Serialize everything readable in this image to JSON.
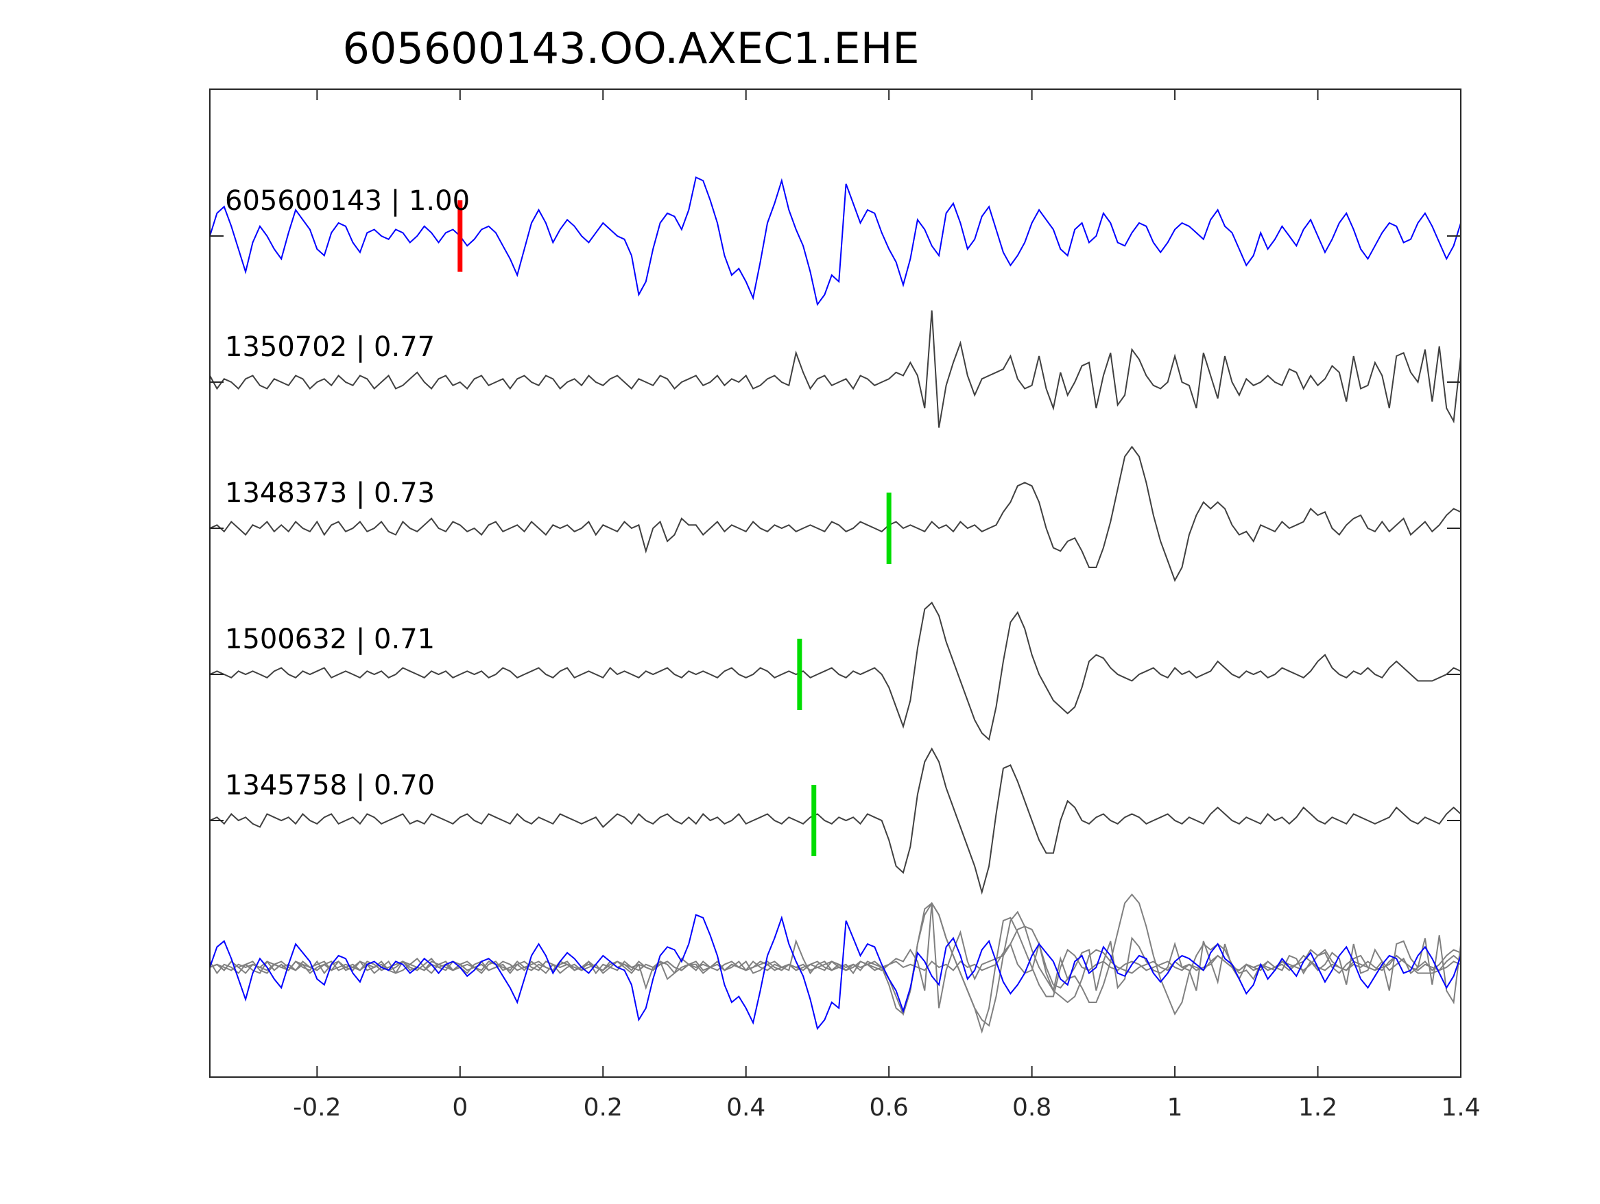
{
  "chart_data": {
    "type": "line",
    "title": "605600143.OO.AXEC1.EHE",
    "xlabel": "",
    "ylabel": "",
    "xlim": [
      -0.35,
      1.4
    ],
    "xticks": [
      -0.2,
      0,
      0.2,
      0.4,
      0.6,
      0.8,
      1,
      1.2,
      1.4
    ],
    "xtick_labels": [
      "-0.2",
      "0",
      "0.2",
      "0.4",
      "0.6",
      "0.8",
      "1",
      "1.2",
      "1.4"
    ],
    "grid": false,
    "legend": "none",
    "colors": {
      "template": "#0000ff",
      "match": "#404040",
      "overlay_match": "#808080",
      "template_pick": "#ff0000",
      "match_pick": "#00dd00",
      "axes": "#262626"
    },
    "sample_interval": 0.01,
    "series": [
      {
        "name": "605600143",
        "label": "605600143 | 1.00",
        "cc": 1.0,
        "role": "template",
        "pick_time": 0.0,
        "values": [
          0.0,
          0.35,
          0.45,
          0.15,
          -0.2,
          -0.55,
          -0.1,
          0.15,
          0.0,
          -0.2,
          -0.35,
          0.05,
          0.4,
          0.25,
          0.1,
          -0.2,
          -0.3,
          0.05,
          0.2,
          0.15,
          -0.1,
          -0.25,
          0.05,
          0.1,
          0.0,
          -0.05,
          0.1,
          0.05,
          -0.1,
          0.0,
          0.15,
          0.05,
          -0.1,
          0.05,
          0.1,
          0.0,
          -0.15,
          -0.05,
          0.1,
          0.15,
          0.05,
          -0.15,
          -0.35,
          -0.6,
          -0.2,
          0.2,
          0.4,
          0.2,
          -0.1,
          0.1,
          0.25,
          0.15,
          0.0,
          -0.1,
          0.05,
          0.2,
          0.1,
          0.0,
          -0.05,
          -0.3,
          -0.9,
          -0.7,
          -0.2,
          0.2,
          0.35,
          0.3,
          0.1,
          0.4,
          0.9,
          0.85,
          0.55,
          0.2,
          -0.3,
          -0.6,
          -0.5,
          -0.7,
          -0.95,
          -0.4,
          0.2,
          0.5,
          0.85,
          0.4,
          0.1,
          -0.15,
          -0.55,
          -1.05,
          -0.9,
          -0.6,
          -0.7,
          0.8,
          0.5,
          0.2,
          0.4,
          0.35,
          0.05,
          -0.2,
          -0.4,
          -0.75,
          -0.35,
          0.25,
          0.1,
          -0.15,
          -0.3,
          0.35,
          0.5,
          0.2,
          -0.2,
          -0.05,
          0.3,
          0.45,
          0.1,
          -0.25,
          -0.45,
          -0.3,
          -0.1,
          0.2,
          0.4,
          0.25,
          0.1,
          -0.2,
          -0.3,
          0.1,
          0.2,
          -0.1,
          0.0,
          0.35,
          0.2,
          -0.1,
          -0.15,
          0.05,
          0.2,
          0.15,
          -0.1,
          -0.25,
          -0.1,
          0.1,
          0.2,
          0.15,
          0.05,
          -0.05,
          0.25,
          0.4,
          0.15,
          0.05,
          -0.2,
          -0.45,
          -0.3,
          0.05,
          -0.2,
          -0.05,
          0.15,
          0.0,
          -0.15,
          0.1,
          0.25,
          0.0,
          -0.25,
          -0.05,
          0.2,
          0.35,
          0.1,
          -0.2,
          -0.35,
          -0.15,
          0.05,
          0.2,
          0.15,
          -0.1,
          -0.05,
          0.2,
          0.35,
          0.15,
          -0.1,
          -0.35,
          -0.15,
          0.2,
          0.4,
          0.2,
          -0.05,
          -0.25,
          -0.15,
          0.1,
          0.25,
          0.1,
          -0.05,
          0.15,
          0.3,
          0.1,
          -0.15,
          -0.05,
          0.15,
          0.3,
          0.15,
          -0.05,
          0.0,
          0.25,
          0.4,
          0.2,
          -0.05,
          -0.3,
          -0.35,
          -0.1,
          0.15,
          0.3,
          0.1,
          -0.05,
          -0.2,
          -0.05
        ]
      },
      {
        "name": "1350702",
        "label": "1350702 | 0.77",
        "cc": 0.77,
        "role": "match",
        "values": [
          0.1,
          -0.1,
          0.05,
          0.0,
          -0.1,
          0.05,
          0.1,
          -0.05,
          -0.1,
          0.05,
          0.0,
          -0.05,
          0.1,
          0.05,
          -0.1,
          0.0,
          0.05,
          -0.05,
          0.1,
          0.0,
          -0.05,
          0.1,
          0.05,
          -0.1,
          0.0,
          0.1,
          -0.1,
          -0.05,
          0.05,
          0.15,
          0.0,
          -0.1,
          0.05,
          0.1,
          -0.05,
          0.0,
          -0.1,
          0.05,
          0.1,
          -0.05,
          0.0,
          0.05,
          -0.1,
          0.05,
          0.1,
          0.0,
          -0.05,
          0.1,
          0.05,
          -0.1,
          0.0,
          0.05,
          -0.05,
          0.1,
          0.0,
          -0.05,
          0.05,
          0.1,
          0.0,
          -0.1,
          0.05,
          0.0,
          -0.05,
          0.1,
          0.05,
          -0.1,
          0.0,
          0.05,
          0.1,
          -0.05,
          0.0,
          0.1,
          -0.05,
          0.05,
          0.0,
          0.1,
          -0.1,
          -0.05,
          0.05,
          0.1,
          0.0,
          -0.05,
          0.45,
          0.15,
          -0.1,
          0.05,
          0.1,
          -0.05,
          0.0,
          0.05,
          -0.1,
          0.1,
          0.05,
          -0.05,
          0.0,
          0.05,
          0.15,
          0.1,
          0.3,
          0.1,
          -0.4,
          1.1,
          -0.7,
          -0.05,
          0.3,
          0.6,
          0.1,
          -0.2,
          0.05,
          0.1,
          0.15,
          0.2,
          0.4,
          0.05,
          -0.1,
          -0.05,
          0.4,
          -0.1,
          -0.4,
          0.15,
          -0.2,
          0.0,
          0.25,
          0.3,
          -0.4,
          0.1,
          0.45,
          -0.35,
          -0.2,
          0.5,
          0.35,
          0.1,
          -0.05,
          -0.1,
          0.0,
          0.4,
          0.0,
          -0.05,
          -0.4,
          0.45,
          0.1,
          -0.25,
          0.4,
          0.0,
          -0.2,
          0.05,
          -0.05,
          0.0,
          0.1,
          0.0,
          -0.05,
          0.2,
          0.15,
          -0.1,
          0.1,
          -0.05,
          0.05,
          0.25,
          0.15,
          -0.3,
          0.4,
          -0.1,
          -0.05,
          0.3,
          0.1,
          -0.4,
          0.4,
          0.45,
          0.15,
          0.0,
          0.5,
          -0.3,
          0.55,
          -0.4,
          -0.6,
          0.4,
          0.1,
          0.05,
          0.25,
          -0.1,
          0.2,
          0.3,
          0.0,
          0.0,
          0.25,
          0.15,
          0.05,
          -0.1,
          0.35,
          0.2,
          -0.3,
          0.0,
          -0.1,
          0.15,
          0.2,
          -0.05,
          0.1,
          0.0,
          -0.05,
          0.2,
          0.1,
          -0.1,
          0.0,
          0.05,
          0.15,
          0.1,
          0.2,
          0.05,
          -0.1,
          0.0,
          0.15,
          0.2,
          0.05,
          -0.1,
          0.2,
          0.05,
          0.0
        ]
      },
      {
        "name": "1348373",
        "label": "1348373 | 0.73",
        "cc": 0.73,
        "role": "match",
        "pick_time": 0.6,
        "values": [
          0.0,
          0.05,
          -0.05,
          0.1,
          0.0,
          -0.1,
          0.05,
          0.0,
          0.1,
          -0.05,
          0.05,
          -0.05,
          0.1,
          0.0,
          -0.05,
          0.1,
          -0.1,
          0.05,
          0.1,
          -0.05,
          0.0,
          0.1,
          -0.05,
          0.0,
          0.1,
          -0.05,
          -0.1,
          0.1,
          0.0,
          -0.05,
          0.05,
          0.15,
          0.0,
          -0.05,
          0.1,
          0.05,
          -0.05,
          0.0,
          -0.1,
          0.05,
          0.1,
          -0.05,
          0.0,
          0.05,
          -0.05,
          0.1,
          0.0,
          -0.1,
          0.05,
          0.0,
          0.05,
          -0.05,
          0.0,
          0.1,
          -0.1,
          0.05,
          0.0,
          -0.05,
          0.1,
          0.0,
          0.05,
          -0.35,
          0.0,
          0.1,
          -0.2,
          -0.1,
          0.15,
          0.05,
          0.05,
          -0.1,
          0.0,
          0.1,
          -0.05,
          0.05,
          0.0,
          -0.05,
          0.1,
          0.0,
          -0.05,
          0.05,
          0.0,
          0.05,
          -0.05,
          0.0,
          0.05,
          0.0,
          -0.05,
          0.1,
          0.05,
          -0.05,
          0.0,
          0.1,
          0.05,
          0.0,
          -0.05,
          0.05,
          0.1,
          0.0,
          0.05,
          0.0,
          -0.05,
          0.1,
          0.0,
          0.05,
          -0.05,
          0.1,
          0.0,
          0.05,
          -0.05,
          0.0,
          0.05,
          0.25,
          0.4,
          0.65,
          0.7,
          0.65,
          0.4,
          0.0,
          -0.3,
          -0.35,
          -0.2,
          -0.15,
          -0.35,
          -0.6,
          -0.6,
          -0.3,
          0.1,
          0.6,
          1.1,
          1.25,
          1.1,
          0.7,
          0.2,
          -0.2,
          -0.5,
          -0.8,
          -0.6,
          -0.1,
          0.2,
          0.4,
          0.3,
          0.4,
          0.3,
          0.05,
          -0.1,
          -0.05,
          -0.2,
          0.05,
          0.0,
          -0.05,
          0.1,
          0.0,
          0.05,
          0.1,
          0.3,
          0.2,
          0.25,
          0.0,
          -0.1,
          0.05,
          0.15,
          0.2,
          0.0,
          -0.05,
          0.1,
          -0.05,
          0.05,
          0.15,
          -0.1,
          0.0,
          0.1,
          -0.05,
          0.05,
          0.2,
          0.3,
          0.25,
          0.05,
          -0.1,
          -0.05,
          0.0,
          0.05,
          0.1,
          0.05,
          -0.05,
          0.1,
          -0.05,
          0.0,
          0.05,
          0.1,
          0.0,
          -0.05,
          0.1,
          0.0,
          -0.05,
          0.1,
          0.2,
          -0.05,
          0.0,
          0.05,
          -0.1,
          0.1,
          0.05,
          0.0,
          -0.1,
          0.05,
          0.15,
          0.0,
          -0.05,
          0.0
        ]
      },
      {
        "name": "1500632",
        "label": "1500632 | 0.71",
        "cc": 0.71,
        "role": "match",
        "pick_time": 0.475,
        "values": [
          0.0,
          0.05,
          0.0,
          -0.05,
          0.05,
          0.0,
          0.05,
          0.0,
          -0.05,
          0.05,
          0.1,
          0.0,
          -0.05,
          0.05,
          0.0,
          0.05,
          0.1,
          -0.05,
          0.0,
          0.05,
          0.0,
          -0.05,
          0.05,
          0.0,
          0.05,
          -0.05,
          0.0,
          0.1,
          0.05,
          0.0,
          -0.05,
          0.05,
          0.0,
          0.05,
          -0.05,
          0.0,
          0.05,
          0.0,
          0.05,
          -0.05,
          0.0,
          0.1,
          0.05,
          -0.05,
          0.0,
          0.05,
          0.1,
          0.0,
          -0.05,
          0.05,
          0.1,
          -0.05,
          0.0,
          0.05,
          0.0,
          -0.05,
          0.1,
          0.0,
          0.05,
          0.0,
          -0.05,
          0.05,
          0.0,
          0.05,
          0.1,
          0.0,
          -0.05,
          0.05,
          0.0,
          0.05,
          0.0,
          -0.05,
          0.05,
          0.1,
          0.0,
          -0.05,
          0.0,
          0.1,
          0.05,
          -0.05,
          0.0,
          0.05,
          0.0,
          0.05,
          -0.05,
          0.0,
          0.05,
          0.1,
          0.0,
          -0.05,
          0.05,
          0.0,
          0.05,
          0.1,
          0.0,
          -0.2,
          -0.5,
          -0.8,
          -0.4,
          0.4,
          1.0,
          1.1,
          0.9,
          0.5,
          0.2,
          -0.1,
          -0.4,
          -0.7,
          -0.9,
          -1.0,
          -0.5,
          0.2,
          0.8,
          0.95,
          0.7,
          0.3,
          0.0,
          -0.2,
          -0.4,
          -0.5,
          -0.6,
          -0.5,
          -0.2,
          0.2,
          0.3,
          0.25,
          0.1,
          0.0,
          -0.05,
          -0.1,
          0.0,
          0.05,
          0.1,
          0.0,
          -0.05,
          0.1,
          0.0,
          0.05,
          -0.05,
          0.0,
          0.05,
          0.2,
          0.1,
          0.0,
          -0.05,
          0.05,
          0.0,
          0.05,
          -0.05,
          0.0,
          0.1,
          0.05,
          0.0,
          -0.05,
          0.05,
          0.2,
          0.3,
          0.1,
          0.0,
          -0.05,
          0.05,
          0.0,
          0.1,
          0.0,
          -0.05,
          0.1,
          0.2,
          0.1,
          0.0,
          -0.1,
          -0.1,
          -0.1,
          -0.05,
          0.0,
          0.1,
          0.05,
          0.0,
          -0.05,
          0.0,
          0.1,
          0.05,
          0.0,
          -0.05,
          0.0,
          0.05,
          0.1,
          0.0,
          -0.05,
          0.05,
          0.1,
          0.0,
          -0.05,
          0.05,
          0.1,
          0.0,
          -0.05,
          0.0,
          0.05,
          0.1,
          0.0,
          -0.05,
          0.0,
          0.05,
          0.0,
          -0.05,
          0.0,
          0.05,
          0.0
        ]
      },
      {
        "name": "1345758",
        "label": "1345758 | 0.70",
        "cc": 0.7,
        "role": "match",
        "pick_time": 0.495,
        "values": [
          0.0,
          0.05,
          -0.05,
          0.1,
          0.0,
          0.05,
          -0.05,
          -0.1,
          0.1,
          0.05,
          0.0,
          0.05,
          -0.05,
          0.1,
          0.0,
          -0.05,
          0.05,
          0.1,
          -0.05,
          0.0,
          0.05,
          -0.05,
          0.1,
          0.05,
          -0.05,
          0.0,
          0.05,
          0.1,
          -0.05,
          0.0,
          -0.05,
          0.1,
          0.05,
          0.0,
          -0.05,
          0.05,
          0.1,
          0.0,
          -0.05,
          0.1,
          0.05,
          0.0,
          -0.05,
          0.1,
          0.0,
          -0.05,
          0.05,
          0.0,
          -0.05,
          0.1,
          0.05,
          0.0,
          -0.05,
          0.0,
          0.05,
          -0.1,
          0.0,
          0.1,
          0.05,
          -0.05,
          0.1,
          0.0,
          -0.05,
          0.05,
          0.1,
          0.0,
          -0.05,
          0.05,
          -0.05,
          0.1,
          0.0,
          0.05,
          -0.05,
          0.0,
          0.1,
          -0.05,
          0.0,
          0.05,
          0.1,
          0.0,
          -0.05,
          0.05,
          0.0,
          -0.05,
          0.05,
          0.1,
          0.0,
          -0.05,
          0.05,
          0.0,
          0.05,
          -0.05,
          0.1,
          0.05,
          0.0,
          -0.3,
          -0.7,
          -0.8,
          -0.4,
          0.4,
          0.9,
          1.1,
          0.9,
          0.5,
          0.2,
          -0.1,
          -0.4,
          -0.7,
          -1.1,
          -0.7,
          0.1,
          0.8,
          0.85,
          0.6,
          0.3,
          0.0,
          -0.3,
          -0.5,
          -0.5,
          0.0,
          0.3,
          0.2,
          0.0,
          -0.05,
          0.05,
          0.1,
          0.0,
          -0.05,
          0.05,
          0.1,
          0.05,
          -0.05,
          0.0,
          0.05,
          0.1,
          0.0,
          -0.05,
          0.05,
          0.0,
          -0.05,
          0.1,
          0.2,
          0.1,
          0.0,
          -0.05,
          0.05,
          0.0,
          -0.05,
          0.1,
          0.0,
          0.05,
          -0.05,
          0.05,
          0.2,
          0.1,
          0.0,
          -0.05,
          0.05,
          0.0,
          -0.05,
          0.1,
          0.05,
          0.0,
          -0.05,
          0.0,
          0.05,
          0.2,
          0.1,
          0.0,
          -0.05,
          0.05,
          0.0,
          -0.05,
          0.1,
          0.2,
          0.1,
          0.0,
          -0.05,
          0.05,
          0.1,
          0.0,
          -0.05,
          0.0,
          0.05,
          0.1,
          0.0,
          -0.05,
          0.05,
          0.1,
          0.0,
          -0.05,
          0.05,
          0.1,
          0.0,
          -0.05,
          0.0,
          0.05,
          0.1,
          0.0,
          -0.05,
          0.0,
          0.05,
          0.0,
          0.05,
          0.0,
          -0.05,
          0.0
        ]
      }
    ]
  }
}
